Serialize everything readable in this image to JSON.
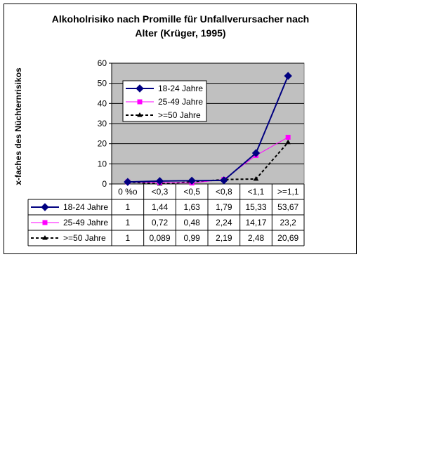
{
  "chart_data": {
    "type": "line",
    "title_lines": [
      "Alkoholrisiko nach Promille für Unfallverursacher nach",
      "Alter (Krüger, 1995)"
    ],
    "ylabel": "x-faches des Nüchternrisikos",
    "xlabel": "",
    "ylim": [
      0,
      60
    ],
    "yticks": [
      0,
      10,
      20,
      30,
      40,
      50,
      60
    ],
    "grid": true,
    "legend_position": "top-left",
    "categories": [
      "0 %o",
      "<0,3",
      "<0,5",
      "<0,8",
      "<1,1",
      ">=1,1"
    ],
    "series": [
      {
        "name": "18-24 Jahre",
        "values": [
          1,
          1.44,
          1.63,
          1.79,
          15.33,
          53.67
        ],
        "labels": [
          "1",
          "1,44",
          "1,63",
          "1,79",
          "15,33",
          "53,67"
        ],
        "color": "#000080",
        "marker": "diamond",
        "dash": "solid"
      },
      {
        "name": "25-49 Jahre",
        "values": [
          1,
          0.72,
          0.48,
          2.24,
          14.17,
          23.2
        ],
        "labels": [
          "1",
          "0,72",
          "0,48",
          "2,24",
          "14,17",
          "23,2"
        ],
        "color": "#ff00ff",
        "marker": "square",
        "dash": "solid"
      },
      {
        "name": ">=50 Jahre",
        "values": [
          1,
          0.089,
          0.99,
          2.19,
          2.48,
          20.69
        ],
        "labels": [
          "1",
          "0,089",
          "0,99",
          "2,19",
          "2,48",
          "20,69"
        ],
        "color": "#000000",
        "marker": "triangle",
        "dash": "dashed"
      }
    ],
    "colors": {
      "plot_background": "#c0c0c0",
      "gridline": "#000000"
    }
  }
}
